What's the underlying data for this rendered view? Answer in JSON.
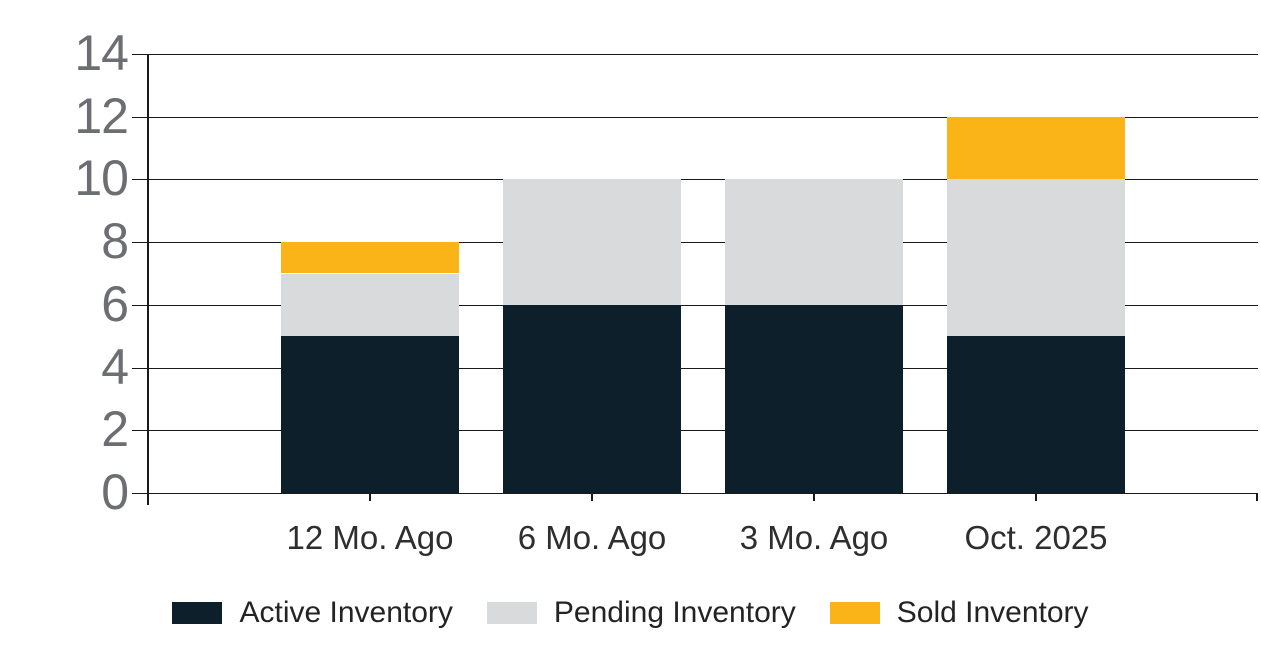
{
  "chart_data": {
    "type": "bar",
    "stacked": true,
    "title": "",
    "categories": [
      "12 Mo. Ago",
      "6 Mo. Ago",
      "3 Mo. Ago",
      "Oct. 2025"
    ],
    "series": [
      {
        "name": "Active Inventory",
        "color": "#0d1f2b",
        "values": [
          5,
          6,
          6,
          5
        ]
      },
      {
        "name": "Pending Inventory",
        "color": "#d9dadb",
        "values": [
          2,
          4,
          4,
          5
        ]
      },
      {
        "name": "Sold Inventory",
        "color": "#fbb418",
        "values": [
          1,
          0,
          0,
          2
        ]
      }
    ],
    "totals": [
      8,
      10,
      10,
      12
    ],
    "ylim": [
      0,
      14
    ],
    "ytick_step": 2,
    "yticks": [
      0,
      2,
      4,
      6,
      8,
      10,
      12,
      14
    ],
    "grid": true,
    "legend_position": "bottom"
  },
  "colors": {
    "background": "#ffffff",
    "gridline": "#1a1a1a",
    "axis_line": "#1a1a1a",
    "y_tick_label": "#6d6e71",
    "x_tick_label": "#2e2e2e",
    "legend_text": "#232323"
  }
}
